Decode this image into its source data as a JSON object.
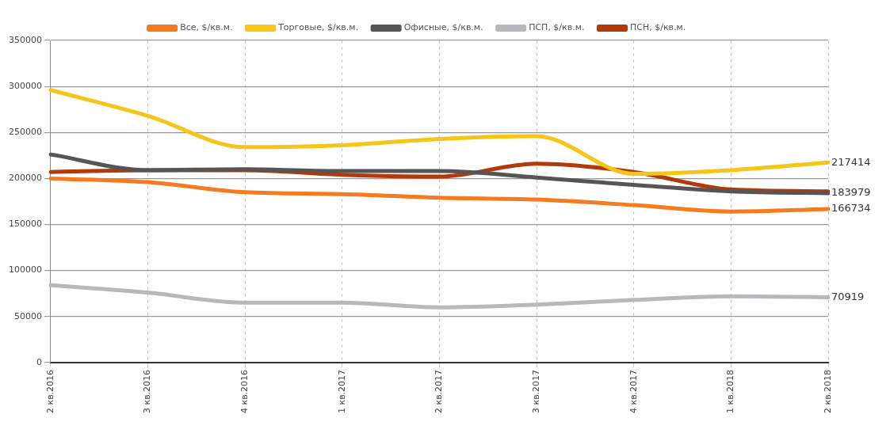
{
  "chart_data": {
    "type": "line",
    "categories": [
      "2 кв.2016",
      "3 кв.2016",
      "4 кв.2016",
      "1 кв.2017",
      "2 кв.2017",
      "3 кв.2017",
      "4 кв.2017",
      "1 кв.2018",
      "2 кв.2018"
    ],
    "series": [
      {
        "name": "Все, $/кв.м.",
        "color": "#f47b20",
        "values": [
          200000,
          196000,
          185000,
          183000,
          179000,
          177000,
          171000,
          164000,
          166734
        ],
        "value_labels": [
          null,
          null,
          null,
          null,
          null,
          null,
          null,
          null,
          "166734"
        ]
      },
      {
        "name": "Торговые, $/кв.м.",
        "color": "#f5c518",
        "values": [
          296000,
          268000,
          234000,
          236000,
          243000,
          246000,
          205000,
          209000,
          217414
        ],
        "value_labels": [
          null,
          null,
          null,
          null,
          null,
          null,
          null,
          null,
          "217414"
        ]
      },
      {
        "name": "Офисные, $/кв.м.",
        "color": "#555555",
        "values": [
          226000,
          209000,
          210000,
          208000,
          208000,
          201000,
          193000,
          186000,
          183979
        ],
        "value_labels": [
          null,
          null,
          null,
          null,
          null,
          null,
          null,
          null,
          "183979"
        ]
      },
      {
        "name": "ПСП, $/кв.м.",
        "color": "#b8b8bc",
        "values": [
          84000,
          76000,
          65000,
          65000,
          60000,
          63000,
          68000,
          72000,
          70919
        ],
        "value_labels": [
          null,
          null,
          null,
          null,
          null,
          null,
          null,
          null,
          "70919"
        ]
      },
      {
        "name": "ПСН, $/кв.м.",
        "color": "#b23a0a",
        "values": [
          207000,
          209000,
          209000,
          204000,
          202000,
          216000,
          207000,
          188000,
          186000
        ]
      }
    ],
    "ylim": [
      0,
      350000
    ],
    "yticks": [
      0,
      50000,
      100000,
      150000,
      200000,
      250000,
      300000,
      350000
    ],
    "grid": true,
    "legend": "top",
    "marker": "none",
    "line_style": "solid"
  }
}
